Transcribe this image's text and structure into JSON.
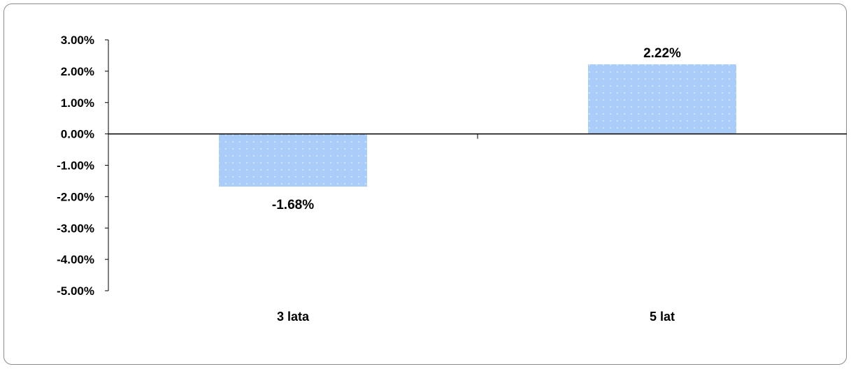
{
  "chart_data": {
    "type": "bar",
    "categories": [
      "3 lata",
      "5 lat"
    ],
    "values": [
      -1.68,
      2.22
    ],
    "data_labels": [
      "-1.68%",
      "2.22%"
    ],
    "yticks": [
      "3.00%",
      "2.00%",
      "1.00%",
      "0.00%",
      "-1.00%",
      "-2.00%",
      "-3.00%",
      "-4.00%",
      "-5.00%"
    ],
    "ylim": [
      -5,
      3
    ],
    "grid": false,
    "title": "",
    "xlabel": "",
    "ylabel": "",
    "bar_color": "#a9cdf8",
    "dot_color": "#ffffff"
  }
}
